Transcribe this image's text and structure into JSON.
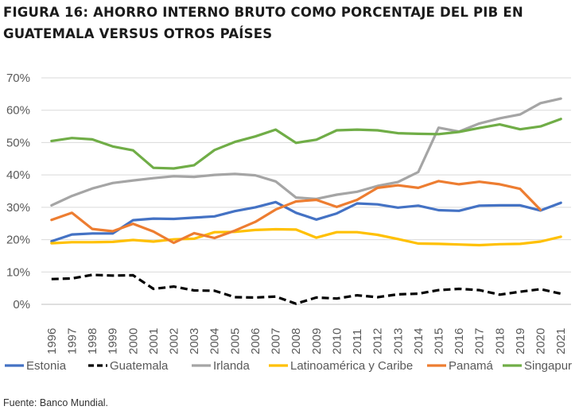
{
  "title": "FIGURA 16: AHORRO INTERNO BRUTO COMO PORCENTAJE DEL PIB EN GUATEMALA VERSUS OTROS PAÍSES",
  "source": "Fuente: Banco Mundial.",
  "chart_data": {
    "type": "line",
    "title": "FIGURA 16: AHORRO INTERNO BRUTO COMO PORCENTAJE DEL PIB EN GUATEMALA VERSUS OTROS PAÍSES",
    "xlabel": "",
    "ylabel": "",
    "ylim": [
      0,
      70
    ],
    "yticks": [
      0,
      10,
      20,
      30,
      40,
      50,
      60,
      70
    ],
    "ytick_labels": [
      "0%",
      "10%",
      "20%",
      "30%",
      "40%",
      "50%",
      "60%",
      "70%"
    ],
    "grid": true,
    "legend_position": "bottom",
    "x": [
      "1996",
      "1997",
      "1998",
      "1999",
      "2000",
      "2001",
      "2002",
      "2003",
      "2004",
      "2005",
      "2006",
      "2007",
      "2008",
      "2009",
      "2010",
      "2011",
      "2012",
      "2013",
      "2014",
      "2015",
      "2016",
      "2017",
      "2018",
      "2019",
      "2020",
      "2021"
    ],
    "series": [
      {
        "name": "Estonia",
        "color": "#4472c4",
        "dash": "solid",
        "values": [
          19.5,
          21.6,
          21.9,
          21.9,
          26.0,
          26.5,
          26.4,
          26.8,
          27.2,
          28.8,
          30.0,
          31.6,
          28.3,
          26.2,
          28.1,
          31.2,
          30.9,
          29.9,
          30.5,
          29.1,
          28.9,
          30.5,
          30.6,
          30.6,
          29.0,
          31.4
        ]
      },
      {
        "name": "Guatemala",
        "color": "#000000",
        "dash": "dashed",
        "values": [
          7.8,
          8.0,
          9.1,
          8.9,
          9.0,
          4.8,
          5.5,
          4.3,
          4.2,
          2.2,
          2.1,
          2.4,
          0.2,
          2.1,
          1.8,
          2.8,
          2.2,
          3.1,
          3.3,
          4.4,
          4.8,
          4.4,
          3.0,
          3.9,
          4.7,
          3.3
        ]
      },
      {
        "name": "Irlanda",
        "color": "#a5a5a5",
        "dash": "solid",
        "values": [
          30.6,
          33.5,
          35.8,
          37.5,
          38.3,
          39.0,
          39.6,
          39.4,
          40.0,
          40.3,
          39.9,
          38.0,
          33.0,
          32.6,
          33.9,
          34.8,
          36.6,
          37.8,
          40.9,
          54.6,
          53.4,
          55.9,
          57.5,
          58.7,
          62.2,
          63.6
        ]
      },
      {
        "name": "Latinoamérica y Caribe",
        "color": "#ffc000",
        "dash": "solid",
        "values": [
          18.9,
          19.2,
          19.2,
          19.3,
          19.9,
          19.4,
          20.1,
          20.3,
          22.3,
          22.4,
          23.0,
          23.2,
          23.1,
          20.6,
          22.3,
          22.3,
          21.5,
          20.2,
          18.8,
          18.7,
          18.5,
          18.3,
          18.6,
          18.7,
          19.4,
          20.9
        ]
      },
      {
        "name": "Panamá",
        "color": "#ed7d31",
        "dash": "solid",
        "values": [
          26.1,
          28.3,
          23.3,
          22.6,
          24.9,
          22.5,
          19.0,
          22.0,
          20.5,
          22.8,
          25.5,
          29.3,
          31.8,
          32.3,
          30.1,
          32.3,
          36.0,
          36.8,
          36.0,
          38.1,
          37.1,
          37.9,
          37.1,
          35.7,
          29.2,
          null
        ]
      },
      {
        "name": "Singapur",
        "color": "#70ad47",
        "dash": "solid",
        "values": [
          50.5,
          51.4,
          51.0,
          48.8,
          47.6,
          42.2,
          42.0,
          43.0,
          47.7,
          50.2,
          51.9,
          54.0,
          49.9,
          50.9,
          53.8,
          54.0,
          53.8,
          52.9,
          52.7,
          52.6,
          53.3,
          54.5,
          55.6,
          54.1,
          55.0,
          57.3
        ]
      }
    ]
  }
}
